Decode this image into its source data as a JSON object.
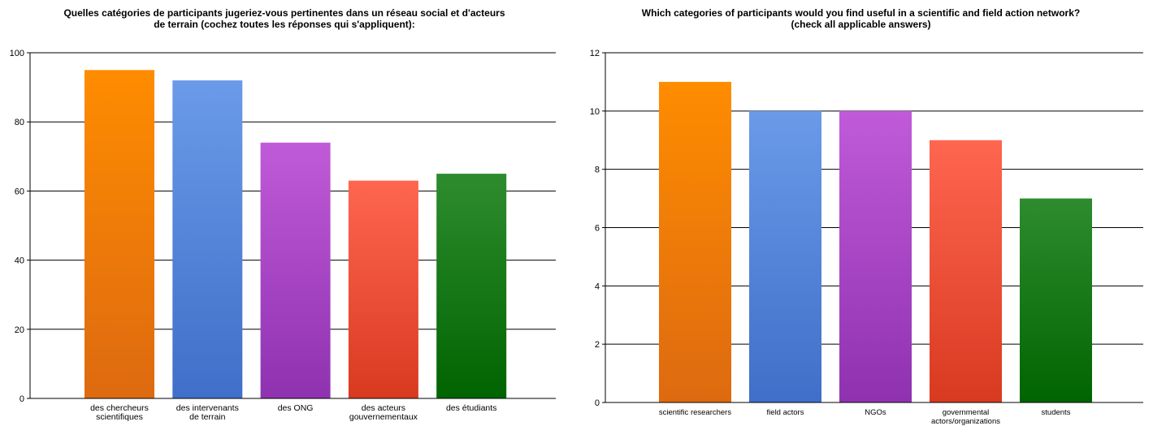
{
  "chart_data": [
    {
      "type": "bar",
      "title": "Quelles catégories de participants jugeriez-vous pertinentes dans un réseau social et d'acteurs\nde terrain (cochez toutes les réponses qui s'appliquent):",
      "categories": [
        [
          "des chercheurs",
          "scientifiques"
        ],
        [
          "des intervenants",
          "de terrain"
        ],
        [
          "des ONG"
        ],
        [
          "des acteurs",
          "gouvernementaux"
        ],
        [
          "des étudiants"
        ]
      ],
      "values": [
        95,
        92,
        74,
        63,
        65
      ],
      "bar_colors": [
        [
          "#ff8c00",
          "#dd6a10"
        ],
        [
          "#6a9ae8",
          "#3f6fc8"
        ],
        [
          "#c05ad8",
          "#8f32b0"
        ],
        [
          "#ff6650",
          "#d83a20"
        ],
        [
          "#2e8c2e",
          "#006400"
        ]
      ],
      "ylim": [
        0,
        100
      ],
      "yticks": [
        0,
        20,
        40,
        60,
        80,
        100
      ],
      "grid": true
    },
    {
      "type": "bar",
      "title": "Which categories of participants would you find useful in a scientific and field action network?\n(check all applicable answers)",
      "categories": [
        [
          "scientific researchers"
        ],
        [
          "field actors"
        ],
        [
          "NGOs"
        ],
        [
          "governmental",
          "actors/organizations"
        ],
        [
          "students"
        ]
      ],
      "values": [
        11,
        10,
        10,
        9,
        7
      ],
      "bar_colors": [
        [
          "#ff8c00",
          "#dd6a10"
        ],
        [
          "#6a9ae8",
          "#3f6fc8"
        ],
        [
          "#c05ad8",
          "#8f32b0"
        ],
        [
          "#ff6650",
          "#d83a20"
        ],
        [
          "#2e8c2e",
          "#006400"
        ]
      ],
      "ylim": [
        0,
        12
      ],
      "yticks": [
        0,
        2,
        4,
        6,
        8,
        10,
        12
      ],
      "grid": true
    }
  ]
}
